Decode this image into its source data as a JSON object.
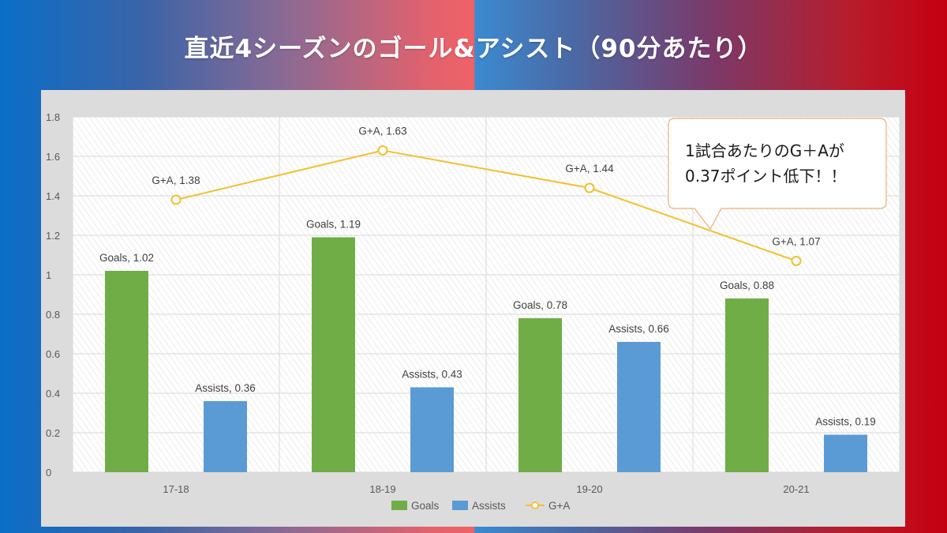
{
  "title": "直近4シーズンのゴール&アシスト（90分あたり）",
  "callout": {
    "line1": "1試合あたりのG＋Aが",
    "line2": "0.37ポイント低下！！"
  },
  "colors": {
    "goals": "#70ad47",
    "assists": "#5b9bd5",
    "ga": "#f2c12e"
  },
  "chart_data": {
    "type": "bar",
    "categories": [
      "17-18",
      "18-19",
      "19-20",
      "20-21"
    ],
    "series": [
      {
        "name": "Goals",
        "type": "bar",
        "values": [
          1.02,
          1.19,
          0.78,
          0.88
        ]
      },
      {
        "name": "Assists",
        "type": "bar",
        "values": [
          0.36,
          0.43,
          0.66,
          0.19
        ]
      },
      {
        "name": "G+A",
        "type": "line",
        "values": [
          1.38,
          1.63,
          1.44,
          1.07
        ]
      }
    ],
    "y_ticks": [
      "0",
      "0.2",
      "0.4",
      "0.6",
      "0.8",
      "1",
      "1.2",
      "1.4",
      "1.6",
      "1.8"
    ],
    "ylim": [
      0,
      1.8
    ],
    "legend_position": "bottom",
    "grid": true
  }
}
